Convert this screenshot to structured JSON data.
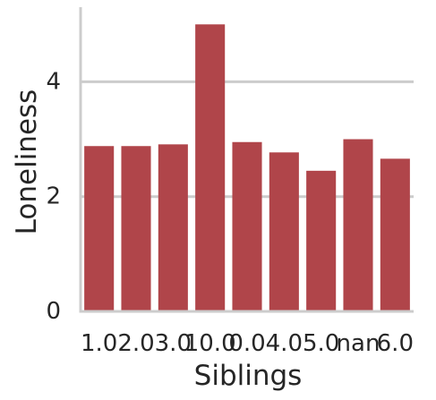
{
  "chart_data": {
    "type": "bar",
    "title": "",
    "xlabel": "Siblings",
    "ylabel": "Loneliness",
    "categories": [
      "1.0",
      "2.0",
      "3.0",
      "10.0",
      "0.0",
      "4.0",
      "5.0",
      "nan",
      "6.0"
    ],
    "values": [
      2.88,
      2.88,
      2.91,
      5.0,
      2.95,
      2.77,
      2.45,
      3.0,
      2.66
    ],
    "ylim": [
      0,
      5.3
    ],
    "yticks": [
      0,
      2,
      4
    ],
    "grid": "y",
    "colors": {
      "bar": "#b0454a",
      "grid": "#cccccc",
      "axis": "#cccccc",
      "text": "#262626"
    }
  }
}
